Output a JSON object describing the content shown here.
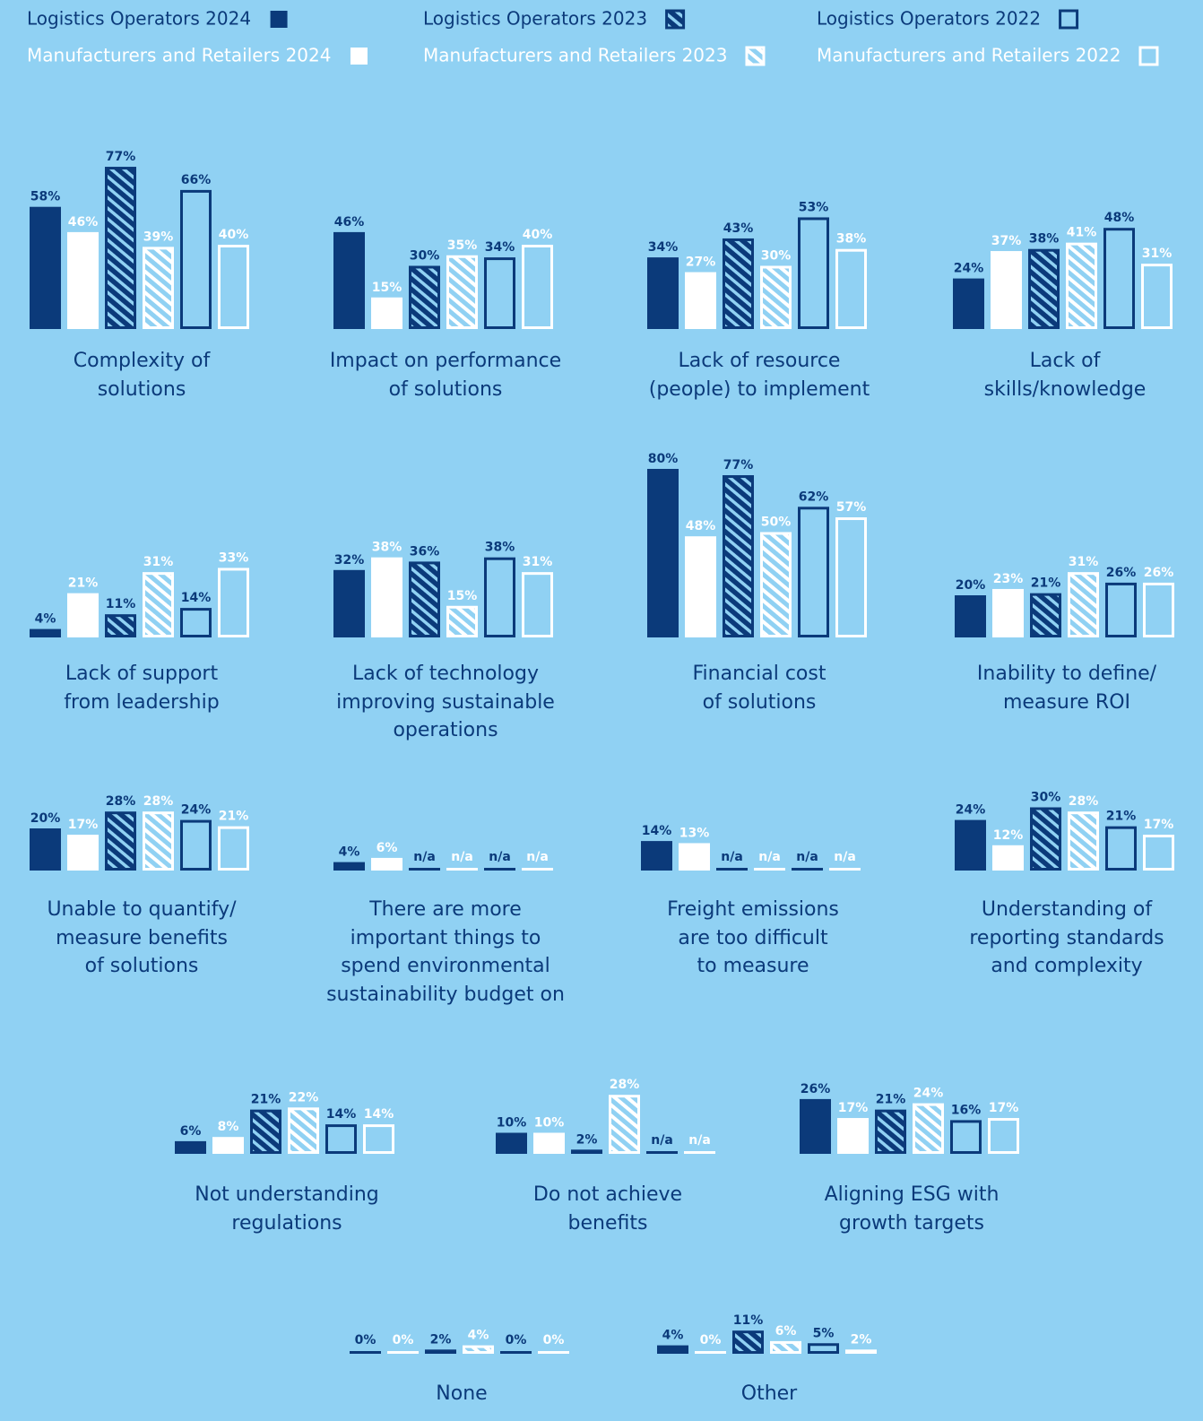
{
  "chart_data": {
    "type": "bar",
    "categories": [
      "Complexity of\nsolutions",
      "Impact on performance\nof solutions",
      "Lack of resource\n(people) to implement",
      "Lack of\nskills/knowledge",
      "Lack of support\nfrom leadership",
      "Lack of technology\nimproving sustainable\noperations",
      "Financial cost\nof solutions",
      "Inability to define/\nmeasure ROI",
      "Unable to quantify/\nmeasure benefits\nof solutions",
      "There are more\nimportant things to\nspend environmental\nsustainability budget on",
      "Freight emissions\nare too difficult\nto measure",
      "Understanding of\nreporting standards\nand complexity",
      "Not understanding\nregulations",
      "Do not achieve\nbenefits",
      "Aligning ESG with\ngrowth targets",
      "None",
      "Other"
    ],
    "series": [
      {
        "name": "Logistics Operators 2024",
        "color": "#0b3a7a",
        "pattern": "solid",
        "values": [
          58,
          46,
          34,
          24,
          4,
          32,
          80,
          20,
          20,
          4,
          14,
          24,
          6,
          10,
          26,
          0,
          4
        ],
        "value_labels": [
          "58%",
          "46%",
          "34%",
          "24%",
          "4%",
          "32%",
          "80%",
          "20%",
          "20%",
          "4%",
          "14%",
          "24%",
          "6%",
          "10%",
          "26%",
          "0%",
          "4%"
        ]
      },
      {
        "name": "Manufacturers and Retailers 2024",
        "color": "#ffffff",
        "pattern": "solid",
        "values": [
          46,
          15,
          27,
          37,
          21,
          38,
          48,
          23,
          17,
          6,
          13,
          12,
          8,
          10,
          17,
          0,
          0
        ],
        "value_labels": [
          "46%",
          "15%",
          "27%",
          "37%",
          "21%",
          "38%",
          "48%",
          "23%",
          "17%",
          "6%",
          "13%",
          "12%",
          "8%",
          "10%",
          "17%",
          "0%",
          "0%"
        ]
      },
      {
        "name": "Logistics Operators 2023",
        "color": "#0b3a7a",
        "pattern": "hatch",
        "values": [
          77,
          30,
          43,
          38,
          11,
          36,
          77,
          21,
          28,
          null,
          null,
          30,
          21,
          2,
          21,
          2,
          11
        ],
        "value_labels": [
          "77%",
          "30%",
          "43%",
          "38%",
          "11%",
          "36%",
          "77%",
          "21%",
          "28%",
          "n/a",
          "n/a",
          "30%",
          "21%",
          "2%",
          "21%",
          "2%",
          "11%"
        ]
      },
      {
        "name": "Manufacturers and Retailers 2023",
        "color": "#ffffff",
        "pattern": "hatch",
        "values": [
          39,
          35,
          30,
          41,
          31,
          15,
          50,
          31,
          28,
          null,
          null,
          28,
          22,
          28,
          24,
          4,
          6
        ],
        "value_labels": [
          "39%",
          "35%",
          "30%",
          "41%",
          "31%",
          "15%",
          "50%",
          "31%",
          "28%",
          "n/a",
          "n/a",
          "28%",
          "22%",
          "28%",
          "24%",
          "4%",
          "6%"
        ]
      },
      {
        "name": "Logistics Operators 2022",
        "color": "#0b3a7a",
        "pattern": "outline",
        "values": [
          66,
          34,
          53,
          48,
          14,
          38,
          62,
          26,
          24,
          null,
          null,
          21,
          14,
          null,
          16,
          0,
          5
        ],
        "value_labels": [
          "66%",
          "34%",
          "53%",
          "48%",
          "14%",
          "38%",
          "62%",
          "26%",
          "24%",
          "n/a",
          "n/a",
          "21%",
          "14%",
          "n/a",
          "16%",
          "0%",
          "5%"
        ]
      },
      {
        "name": "Manufacturers and Retailers 2022",
        "color": "#ffffff",
        "pattern": "outline",
        "values": [
          40,
          40,
          38,
          31,
          33,
          31,
          57,
          26,
          21,
          null,
          null,
          17,
          14,
          null,
          17,
          0,
          2
        ],
        "value_labels": [
          "40%",
          "40%",
          "38%",
          "31%",
          "33%",
          "31%",
          "57%",
          "26%",
          "21%",
          "n/a",
          "n/a",
          "17%",
          "14%",
          "n/a",
          "17%",
          "0%",
          "2%"
        ]
      }
    ]
  }
}
